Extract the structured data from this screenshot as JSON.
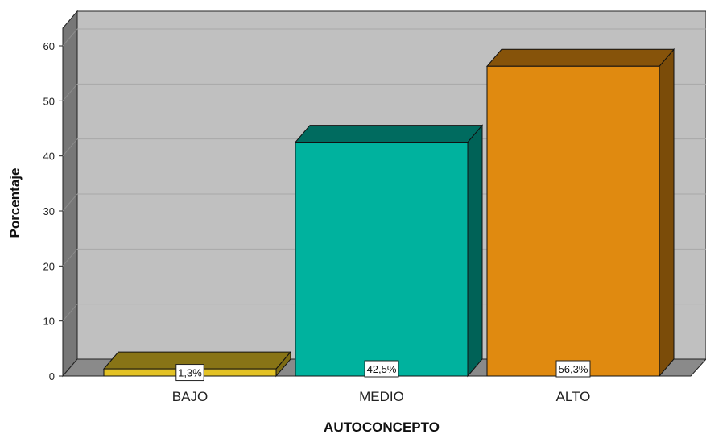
{
  "chart_data": {
    "type": "bar",
    "style": "3d",
    "categories": [
      "BAJO",
      "MEDIO",
      "ALTO"
    ],
    "values": [
      1.3,
      42.5,
      56.3
    ],
    "data_labels": [
      "1,3%",
      "42,5%",
      "56,3%"
    ],
    "colors": [
      "#e3c225",
      "#00b29e",
      "#e08a10"
    ],
    "xlabel": "AUTOCONCEPTO",
    "ylabel": "Porcentaje",
    "ylim": [
      0,
      60
    ],
    "yticks": [
      "0",
      "10",
      "20",
      "30",
      "40",
      "50",
      "60"
    ],
    "grid": true,
    "legend": "none",
    "background_color": "#c0c0c0",
    "side_wall_color": "#777777"
  }
}
